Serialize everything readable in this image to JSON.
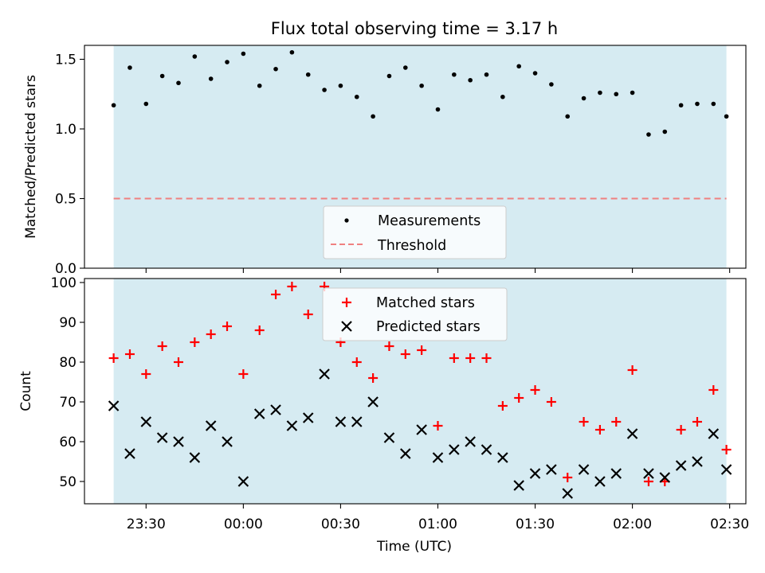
{
  "title": "Flux total observing time = 3.17 h",
  "colors": {
    "band": "#add8e6",
    "measurement": "#000000",
    "threshold": "#f08080",
    "matched": "#ff0000",
    "predicted": "#000000"
  },
  "chart_data": [
    {
      "type": "scatter",
      "title": "Flux total observing time = 3.17 h",
      "xlabel": "",
      "ylabel": "Matched/Predicted stars",
      "xlim": [
        "23:11",
        "02:35"
      ],
      "ylim": [
        0,
        1.6
      ],
      "yticks": [
        0.0,
        0.5,
        1.0,
        1.5
      ],
      "ytick_labels": [
        "0.0",
        "0.5",
        "1.0",
        "1.5"
      ],
      "x_tick_labels_shown": false,
      "grid": false,
      "legend_position": "lower-center",
      "shaded_span": [
        "23:20",
        "02:29"
      ],
      "threshold": 0.5,
      "series": [
        {
          "name": "Measurements",
          "marker": "dot",
          "x": [
            "23:20",
            "23:25",
            "23:30",
            "23:35",
            "23:40",
            "23:45",
            "23:50",
            "23:55",
            "00:00",
            "00:05",
            "00:10",
            "00:15",
            "00:20",
            "00:25",
            "00:30",
            "00:35",
            "00:40",
            "00:45",
            "00:50",
            "00:55",
            "01:00",
            "01:05",
            "01:10",
            "01:15",
            "01:20",
            "01:25",
            "01:30",
            "01:35",
            "01:40",
            "01:45",
            "01:50",
            "01:55",
            "02:00",
            "02:05",
            "02:10",
            "02:15",
            "02:20",
            "02:25",
            "02:29"
          ],
          "values": [
            1.17,
            1.44,
            1.18,
            1.38,
            1.33,
            1.52,
            1.36,
            1.48,
            1.54,
            1.31,
            1.43,
            1.55,
            1.39,
            1.28,
            1.31,
            1.23,
            1.09,
            1.38,
            1.44,
            1.31,
            1.14,
            1.39,
            1.35,
            1.39,
            1.23,
            1.45,
            1.4,
            1.32,
            1.09,
            1.22,
            1.26,
            1.25,
            1.26,
            0.96,
            0.98,
            1.17,
            1.18,
            1.18,
            1.09
          ]
        },
        {
          "name": "Threshold",
          "style": "dashed",
          "x": [
            "23:20",
            "02:29"
          ],
          "values": [
            0.5,
            0.5
          ]
        }
      ]
    },
    {
      "type": "scatter",
      "xlabel": "Time (UTC)",
      "ylabel": "Count",
      "xlim": [
        "23:11",
        "02:35"
      ],
      "ylim": [
        44.4,
        101
      ],
      "yticks": [
        50,
        60,
        70,
        80,
        90,
        100
      ],
      "ytick_labels": [
        "50",
        "60",
        "70",
        "80",
        "90",
        "100"
      ],
      "xticks": [
        "23:30",
        "00:00",
        "00:30",
        "01:00",
        "01:30",
        "02:00",
        "02:30"
      ],
      "grid": false,
      "legend_position": "upper-center",
      "shaded_span": [
        "23:20",
        "02:29"
      ],
      "series": [
        {
          "name": "Matched stars",
          "marker": "plus",
          "x": [
            "23:20",
            "23:25",
            "23:30",
            "23:35",
            "23:40",
            "23:45",
            "23:50",
            "23:55",
            "00:00",
            "00:05",
            "00:10",
            "00:15",
            "00:20",
            "00:25",
            "00:30",
            "00:35",
            "00:40",
            "00:45",
            "00:50",
            "00:55",
            "01:00",
            "01:05",
            "01:10",
            "01:15",
            "01:20",
            "01:25",
            "01:30",
            "01:35",
            "01:40",
            "01:45",
            "01:50",
            "01:55",
            "02:00",
            "02:05",
            "02:10",
            "02:15",
            "02:20",
            "02:25",
            "02:29"
          ],
          "values": [
            81,
            82,
            77,
            84,
            80,
            85,
            87,
            89,
            77,
            88,
            97,
            99,
            92,
            99,
            85,
            80,
            76,
            84,
            82,
            83,
            64,
            81,
            81,
            81,
            69,
            71,
            73,
            70,
            51,
            65,
            63,
            65,
            78,
            50,
            50,
            63,
            65,
            73,
            58
          ]
        },
        {
          "name": "Predicted stars",
          "marker": "x",
          "x": [
            "23:20",
            "23:25",
            "23:30",
            "23:35",
            "23:40",
            "23:45",
            "23:50",
            "23:55",
            "00:00",
            "00:05",
            "00:10",
            "00:15",
            "00:20",
            "00:25",
            "00:30",
            "00:35",
            "00:40",
            "00:45",
            "00:50",
            "00:55",
            "01:00",
            "01:05",
            "01:10",
            "01:15",
            "01:20",
            "01:25",
            "01:30",
            "01:35",
            "01:40",
            "01:45",
            "01:50",
            "01:55",
            "02:00",
            "02:05",
            "02:10",
            "02:15",
            "02:20",
            "02:25",
            "02:29"
          ],
          "values": [
            69,
            57,
            65,
            61,
            60,
            56,
            64,
            60,
            50,
            67,
            68,
            64,
            66,
            77,
            65,
            65,
            70,
            61,
            57,
            63,
            56,
            58,
            60,
            58,
            56,
            49,
            52,
            53,
            47,
            53,
            50,
            52,
            62,
            52,
            51,
            54,
            55,
            62,
            53
          ]
        }
      ]
    }
  ]
}
